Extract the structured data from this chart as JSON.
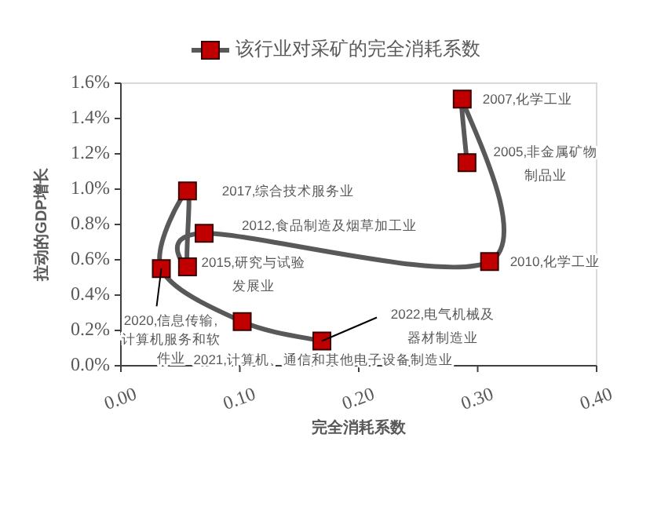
{
  "chart_data": {
    "type": "line",
    "xlabel": "完全消耗系数",
    "ylabel": "拉动的GDP增长",
    "legend": "top",
    "grid": false,
    "marker": "square",
    "line_style": "solid",
    "series": [
      {
        "name": "该行业对采矿的完全消耗系数",
        "color": "#c00000",
        "x": [
          0.291,
          0.287,
          0.31,
          0.07,
          0.056,
          0.056,
          0.034,
          0.102,
          0.169
        ],
        "values": [
          1.15,
          1.51,
          0.59,
          0.75,
          0.56,
          0.99,
          0.55,
          0.25,
          0.14
        ]
      }
    ],
    "xlim": [
      0,
      0.4
    ],
    "xticks": [
      {
        "value": 0,
        "label": "0.00"
      },
      {
        "value": 0.1,
        "label": "0.10"
      },
      {
        "value": 0.2,
        "label": "0.20"
      },
      {
        "value": 0.3,
        "label": "0.30"
      },
      {
        "value": 0.4,
        "label": "0.40"
      }
    ],
    "ylim": [
      0,
      1.6
    ],
    "yticks": [
      {
        "value": 0,
        "label": "0.0%"
      },
      {
        "value": 0.2,
        "label": "0.2%"
      },
      {
        "value": 0.4,
        "label": "0.4%"
      },
      {
        "value": 0.6,
        "label": "0.6%"
      },
      {
        "value": 0.8,
        "label": "0.8%"
      },
      {
        "value": 1.0,
        "label": "1.0%"
      },
      {
        "value": 1.2,
        "label": "1.2%"
      },
      {
        "value": 1.4,
        "label": "1.4%"
      },
      {
        "value": 1.6,
        "label": "1.6%"
      }
    ],
    "annotations": [
      {
        "text": "2005,非金属矿物制品业",
        "x": 0.291,
        "y": 1.15
      },
      {
        "text": "2007,化学工业",
        "x": 0.287,
        "y": 1.51
      },
      {
        "text": "2010,化学工业",
        "x": 0.31,
        "y": 0.59
      },
      {
        "text": "2012,食品制造及烟草加工业",
        "x": 0.07,
        "y": 0.75
      },
      {
        "text": "2015,研究与试验发展业",
        "x": 0.056,
        "y": 0.56
      },
      {
        "text": "2017,综合技术服务业",
        "x": 0.056,
        "y": 0.99
      },
      {
        "text": "2020,信息传输,计算机服务和软件业",
        "x": 0.034,
        "y": 0.55
      },
      {
        "text": "2021,计算机、通信和其他电子设备制造业",
        "x": 0.102,
        "y": 0.25
      },
      {
        "text": "2022,电气机械及器材制造业",
        "x": 0.169,
        "y": 0.14
      }
    ]
  }
}
